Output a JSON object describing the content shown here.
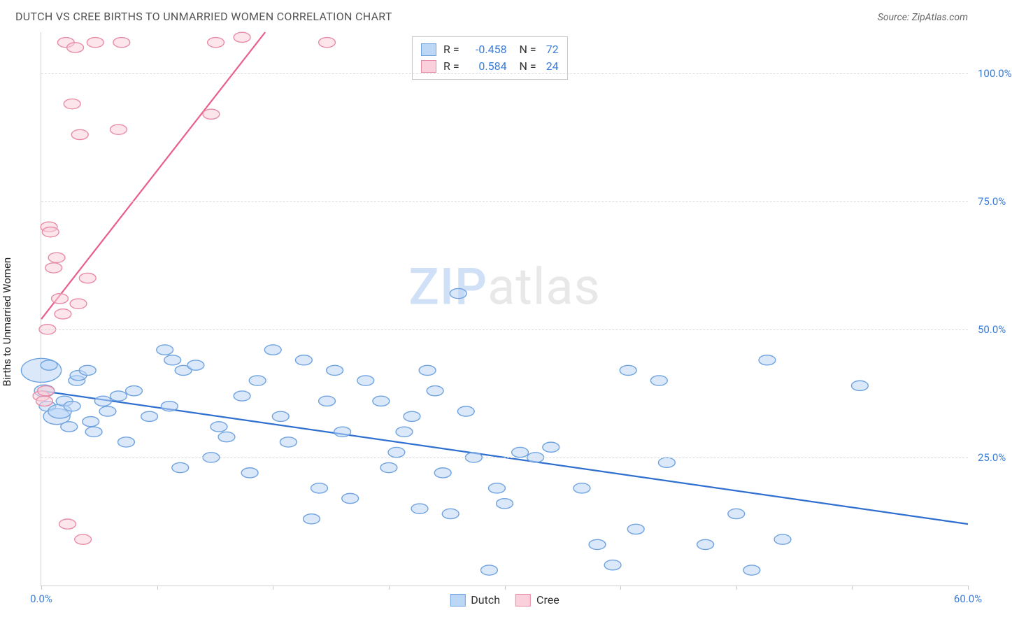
{
  "title": "DUTCH VS CREE BIRTHS TO UNMARRIED WOMEN CORRELATION CHART",
  "source_label": "Source: ZipAtlas.com",
  "ylabel": "Births to Unmarried Women",
  "watermark_a": "ZIP",
  "watermark_b": "atlas",
  "chart": {
    "type": "scatter",
    "xlim": [
      0,
      60
    ],
    "ylim": [
      0,
      108
    ],
    "x_ticks": [
      0,
      7.5,
      15,
      22.5,
      30,
      37.5,
      45,
      52.5,
      60
    ],
    "x_tick_labels": {
      "0": "0.0%",
      "60": "60.0%"
    },
    "y_gridlines": [
      25,
      50,
      75,
      100
    ],
    "y_tick_labels": {
      "25": "25.0%",
      "50": "50.0%",
      "75": "75.0%",
      "100": "100.0%"
    },
    "grid_color": "#d8d8d8",
    "background_color": "#ffffff",
    "marker_radius": 9,
    "marker_stroke_width": 1.4,
    "series": [
      {
        "name": "Dutch",
        "fill": "#bcd6f5",
        "stroke": "#6fa3e0",
        "line_color": "#2f6fd0",
        "line_width": 2.2,
        "R": "-0.458",
        "N": "72",
        "trend": {
          "x1": 0,
          "y1": 38,
          "x2": 60,
          "y2": 12
        },
        "points": [
          [
            0,
            42,
            2.4
          ],
          [
            0.2,
            38,
            1.2
          ],
          [
            0.4,
            35,
            1
          ],
          [
            0.5,
            43,
            1
          ],
          [
            1,
            33,
            1.6
          ],
          [
            1.2,
            34,
            1.4
          ],
          [
            1.5,
            36,
            1
          ],
          [
            1.8,
            31,
            1
          ],
          [
            2,
            35,
            1
          ],
          [
            2.3,
            40,
            1
          ],
          [
            2.4,
            41,
            1
          ],
          [
            3,
            42,
            1
          ],
          [
            3.2,
            32,
            1
          ],
          [
            3.4,
            30,
            1
          ],
          [
            4,
            36,
            1
          ],
          [
            4.3,
            34,
            1
          ],
          [
            5,
            37,
            1
          ],
          [
            5.5,
            28,
            1
          ],
          [
            6,
            38,
            1
          ],
          [
            7,
            33,
            1
          ],
          [
            8,
            46,
            1
          ],
          [
            8.3,
            35,
            1
          ],
          [
            8.5,
            44,
            1
          ],
          [
            9,
            23,
            1
          ],
          [
            9.2,
            42,
            1
          ],
          [
            10,
            43,
            1
          ],
          [
            11,
            25,
            1
          ],
          [
            11.5,
            31,
            1
          ],
          [
            12,
            29,
            1
          ],
          [
            13,
            37,
            1
          ],
          [
            13.5,
            22,
            1
          ],
          [
            14,
            40,
            1
          ],
          [
            15,
            46,
            1
          ],
          [
            15.5,
            33,
            1
          ],
          [
            16,
            28,
            1
          ],
          [
            17,
            44,
            1
          ],
          [
            17.5,
            13,
            1
          ],
          [
            18,
            19,
            1
          ],
          [
            18.5,
            36,
            1
          ],
          [
            19,
            42,
            1
          ],
          [
            19.5,
            30,
            1
          ],
          [
            20,
            17,
            1
          ],
          [
            21,
            40,
            1
          ],
          [
            22,
            36,
            1
          ],
          [
            22.5,
            23,
            1
          ],
          [
            23,
            26,
            1
          ],
          [
            23.5,
            30,
            1
          ],
          [
            24,
            33,
            1
          ],
          [
            24.5,
            15,
            1
          ],
          [
            25,
            42,
            1
          ],
          [
            25.5,
            38,
            1
          ],
          [
            26,
            22,
            1
          ],
          [
            26.5,
            14,
            1
          ],
          [
            27,
            57,
            1
          ],
          [
            27.5,
            34,
            1
          ],
          [
            28,
            25,
            1
          ],
          [
            29,
            3,
            1
          ],
          [
            29.5,
            19,
            1
          ],
          [
            30,
            16,
            1
          ],
          [
            31,
            26,
            1
          ],
          [
            32,
            25,
            1
          ],
          [
            33,
            27,
            1
          ],
          [
            35,
            19,
            1
          ],
          [
            36,
            8,
            1
          ],
          [
            37,
            4,
            1
          ],
          [
            38,
            42,
            1
          ],
          [
            38.5,
            11,
            1
          ],
          [
            40,
            40,
            1
          ],
          [
            40.5,
            24,
            1
          ],
          [
            43,
            8,
            1
          ],
          [
            45,
            14,
            1
          ],
          [
            46,
            3,
            1
          ],
          [
            47,
            44,
            1
          ],
          [
            48,
            9,
            1
          ],
          [
            53,
            39,
            1
          ]
        ]
      },
      {
        "name": "Cree",
        "fill": "#f9d0db",
        "stroke": "#e88ba6",
        "line_color": "#e95f8a",
        "line_width": 2.2,
        "R": "0.584",
        "N": "24",
        "trend": {
          "x1": 0,
          "y1": 52,
          "x2": 14.5,
          "y2": 108
        },
        "points": [
          [
            0,
            37,
            1
          ],
          [
            0.2,
            36,
            1
          ],
          [
            0.3,
            38,
            1
          ],
          [
            0.4,
            50,
            1.0
          ],
          [
            0.5,
            70,
            1
          ],
          [
            0.6,
            69,
            1
          ],
          [
            0.8,
            62,
            1
          ],
          [
            1,
            64,
            1
          ],
          [
            1.2,
            56,
            1
          ],
          [
            1.4,
            53,
            1
          ],
          [
            1.6,
            106,
            1
          ],
          [
            1.7,
            12,
            1
          ],
          [
            2,
            94,
            1
          ],
          [
            2.2,
            105,
            1
          ],
          [
            2.4,
            55,
            1
          ],
          [
            2.5,
            88,
            1
          ],
          [
            2.7,
            9,
            1
          ],
          [
            3,
            60,
            1
          ],
          [
            3.5,
            106,
            1
          ],
          [
            5,
            89,
            1
          ],
          [
            5.2,
            106,
            1
          ],
          [
            11,
            92,
            1
          ],
          [
            11.3,
            106,
            1
          ],
          [
            13,
            107,
            1
          ],
          [
            18.5,
            106,
            1
          ]
        ]
      }
    ],
    "legend_bottom": [
      "Dutch",
      "Cree"
    ]
  }
}
